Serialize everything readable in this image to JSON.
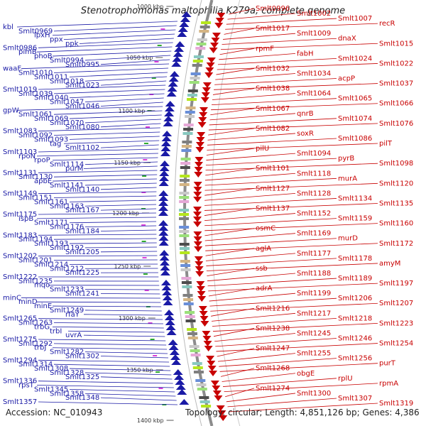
{
  "header": {
    "title": "Stenotrophomonas maltophilia K279a, complete genome"
  },
  "footer": {
    "accession": "Accession: NC_010943",
    "summary": "Topology: circular; Length: 4,851,126 bp; Genes: 4,386"
  },
  "scale_labels": [
    "1000 kbp",
    "1050 kbp",
    "1100 kbp",
    "1150 kbp",
    "1200 kbp",
    "1250 kbp",
    "1300 kbp",
    "1350 kbp",
    "1400 kbp"
  ],
  "left_labels": [
    "kbl",
    "Smlt0969",
    "lpxH",
    "ppx",
    "ppk",
    "Smlt0986",
    "pimB",
    "phoB",
    "Smlt0994",
    "Smlt0995",
    "waaF",
    "Smlt1010",
    "Smlt1011",
    "Smlt1018",
    "Smlt1023",
    "Smlt1019",
    "Smlt1039",
    "Smlt1040",
    "Smlt1047",
    "Smlt1046",
    "gpW",
    "Smlt1061",
    "Smlt1069",
    "Smlt1070",
    "Smlt1080",
    "Smlt1083",
    "Smlt1092",
    "Smlt1093",
    "tag",
    "Smlt1102",
    "Smlt1103",
    "rpoN",
    "rpoP",
    "Smlt1114",
    "purM",
    "Smlt1131",
    "Smlt1130",
    "apbE",
    "Smlt1141",
    "Smlt1140",
    "Smlt1149",
    "Smlt1151",
    "Smlt1161",
    "Smlt1163",
    "Smlt1167",
    "Smlt1175",
    "ispB",
    "Smlt1171",
    "Smlt1176",
    "Smlt1184",
    "Smlt1183",
    "Smlt1194",
    "Smlt1193",
    "Smlt1192",
    "Smlt1205",
    "Smlt1202",
    "Smlt1201",
    "Smlt1214",
    "Smlt1212",
    "Smlt1225",
    "Smlt1222",
    "Smlt1235",
    "mqo",
    "Smlt1233",
    "Smlt1241",
    "minC",
    "minD",
    "minE",
    "Smlt1249",
    "rfaY",
    "Smlt1265",
    "Smlt1263",
    "trbG",
    "trbI",
    "uvrA",
    "Smlt1275",
    "Smlt1292",
    "trbJ",
    "Smlt1282",
    "Smlt1302",
    "Smlt1294",
    "Smlt1314",
    "Smlt1308",
    "Smlt1328",
    "Smlt1325",
    "Smlt1336",
    "rpsT",
    "Smlt1345",
    "Smlt1358",
    "Smlt1348",
    "Smlt1357"
  ],
  "right_labels": [
    "Smlt0996",
    "Smlt1002",
    "Smlt1007",
    "recR",
    "Smlt1017",
    "Smlt1009",
    "dnaX",
    "Smlt1015",
    "rpmF",
    "fabH",
    "Smlt1024",
    "Smlt1022",
    "Smlt1032",
    "Smlt1034",
    "acpP",
    "Smlt1037",
    "Smlt1038",
    "Smlt1064",
    "Smlt1065",
    "Smlt1066",
    "Smlt1067",
    "qnrB",
    "Smlt1074",
    "Smlt1076",
    "Smlt1082",
    "soxR",
    "Smlt1086",
    "pilT",
    "pilU",
    "Smlt1094",
    "pyrB",
    "Smlt1098",
    "Smlt1101",
    "Smlt1118",
    "murA",
    "Smlt1120",
    "Smlt1127",
    "Smlt1128",
    "Smlt1134",
    "Smlt1135",
    "Smlt1137",
    "Smlt1152",
    "Smlt1159",
    "Smlt1160",
    "osmC",
    "Smlt1169",
    "murD",
    "Smlt1172",
    "aglA",
    "Smlt1177",
    "Smlt1178",
    "amyM",
    "ssb",
    "Smlt1188",
    "Smlt1189",
    "Smlt1197",
    "adrA",
    "Smlt1199",
    "Smlt1206",
    "Smlt1207",
    "Smlt1216",
    "Smlt1217",
    "Smlt1218",
    "Smlt1223",
    "Smlt1238",
    "Smlt1245",
    "Smlt1246",
    "Smlt1254",
    "Smlt1247",
    "Smlt1255",
    "Smlt1256",
    "purT",
    "Smlt1268",
    "obgE",
    "rplU",
    "rpmA",
    "Smlt1274",
    "Smlt1300",
    "Smlt1307",
    "Smlt1319"
  ],
  "colors": {
    "forward": "#1a1aa6",
    "reverse": "#c80000",
    "backbone": "#8c8c8c"
  }
}
